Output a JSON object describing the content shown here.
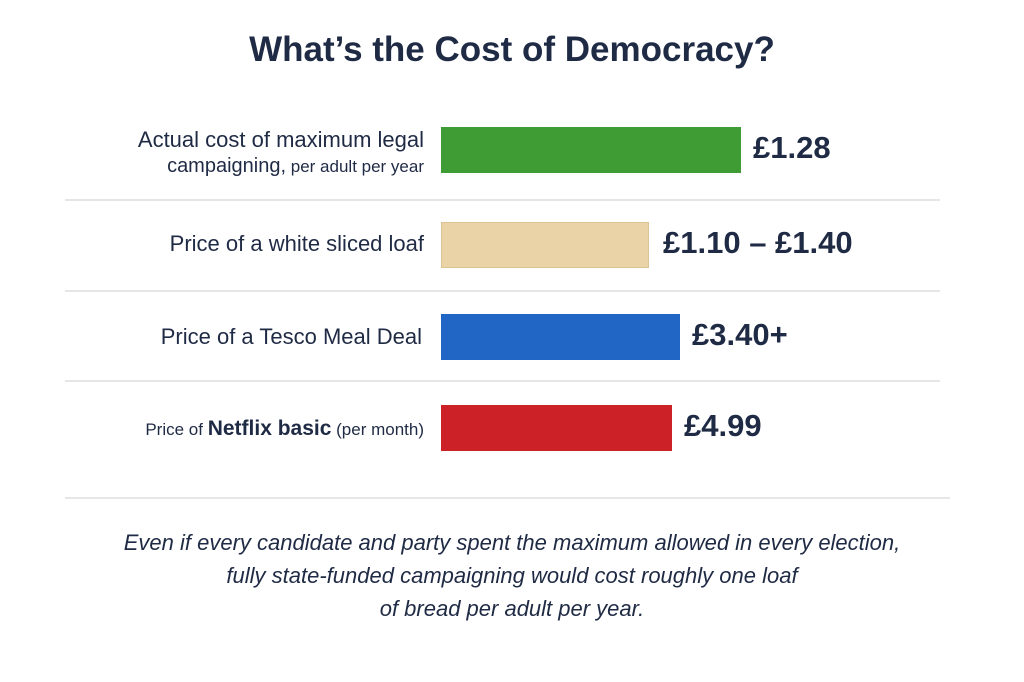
{
  "chart_data": {
    "type": "bar",
    "orientation": "horizontal",
    "title": "What’s the Cost of Democracy?",
    "categories": [
      "Actual cost of maximum legal campaigning, per adult per year",
      "Price of a white sliced loaf",
      "Price of a Tesco Meal Deal",
      "Price of Netflix basic (per month)"
    ],
    "values": [
      1.28,
      1.25,
      3.4,
      4.99
    ],
    "value_labels": [
      "£1.28",
      "£1.10 – £1.40",
      "£3.40+",
      "£4.99"
    ],
    "colors": [
      "#3f9c35",
      "#ead3a6",
      "#2166c4",
      "#cc2127"
    ],
    "grid": false,
    "legend": "none"
  },
  "rows": [
    {
      "line1": "Actual cost of maximum legal",
      "line2a": "campaigning,",
      "line2b": " per adult per year"
    },
    {
      "label": "Price of a white sliced loaf"
    },
    {
      "label": "Price of a Tesco Meal Deal"
    },
    {
      "pre": "Price of ",
      "bold": "Netflix basic",
      "post": " (per month)"
    }
  ],
  "footer": {
    "line1": "Even if every candidate and party spent the maximum allowed in every election,",
    "line2": "fully state-funded campaigning would cost roughly one loaf",
    "line3": "of bread per adult per year."
  }
}
